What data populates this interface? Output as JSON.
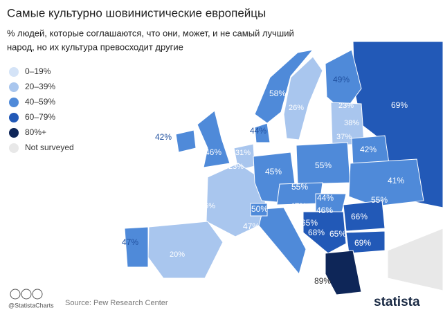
{
  "header": {
    "title": "Самые культурно шовинистические европейцы",
    "subtitle": [
      "% людей, которые соглашаются, что они, может, и не самый лучший",
      "народ, но их культура превосходит другие"
    ]
  },
  "legend": [
    {
      "label": "0–19%",
      "color": "#d4e3f7"
    },
    {
      "label": "20–39%",
      "color": "#a9c6ee"
    },
    {
      "label": "40–59%",
      "color": "#4f8ad9"
    },
    {
      "label": "60–79%",
      "color": "#2259b7"
    },
    {
      "label": "80%+",
      "color": "#0e2658"
    },
    {
      "label": "Not surveyed",
      "color": "#e8e8e8"
    }
  ],
  "map_labels": [
    "49%",
    "58%",
    "26%",
    "23%",
    "69%",
    "38%",
    "44%",
    "42%",
    "37%",
    "46%",
    "31%",
    "42%",
    "23%",
    "45%",
    "55%",
    "41%",
    "55%",
    "44%",
    "55%",
    "36%",
    "50%",
    "47%",
    "46%",
    "66%",
    "65%",
    "68%",
    "65%",
    "47%",
    "69%",
    "47%",
    "20%",
    "89%"
  ],
  "footer": {
    "handle": "@StatistaCharts",
    "source": "Source: Pew Research Center",
    "brand": "statista"
  }
}
